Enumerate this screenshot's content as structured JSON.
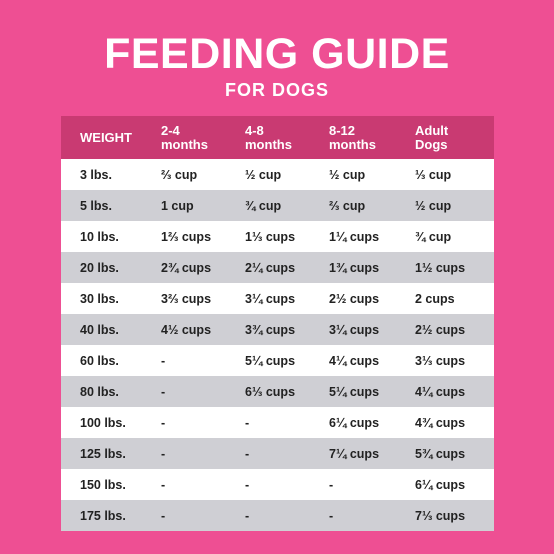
{
  "title": "FEEDING GUIDE",
  "subtitle": "FOR DOGS",
  "colors": {
    "background": "#ee4f93",
    "header": "#c93a72",
    "row_light": "#ffffff",
    "row_gray": "#cfcfd4"
  },
  "table": {
    "headers": [
      "WEIGHT",
      "2-4 months",
      "4-8 months",
      "8-12 months",
      "Adult Dogs"
    ],
    "rows": [
      [
        "3 lbs.",
        "⅔ cup",
        "½ cup",
        "½ cup",
        "⅓ cup"
      ],
      [
        "5 lbs.",
        "1 cup",
        "¾ cup",
        "⅔ cup",
        "½ cup"
      ],
      [
        "10 lbs.",
        "1⅔ cups",
        "1⅓ cups",
        "1¼ cups",
        "¾ cup"
      ],
      [
        "20 lbs.",
        "2¾ cups",
        "2¼ cups",
        "1¾ cups",
        "1½ cups"
      ],
      [
        "30 lbs.",
        "3⅔ cups",
        "3¼ cups",
        "2½ cups",
        "2 cups"
      ],
      [
        "40 lbs.",
        "4½ cups",
        "3¾ cups",
        "3¼ cups",
        "2½ cups"
      ],
      [
        "60 lbs.",
        "-",
        "5¼ cups",
        "4¼ cups",
        "3⅓ cups"
      ],
      [
        "80 lbs.",
        "-",
        "6⅓ cups",
        "5¼ cups",
        "4¼ cups"
      ],
      [
        "100 lbs.",
        "-",
        "-",
        "6¼ cups",
        "4¾ cups"
      ],
      [
        "125 lbs.",
        "-",
        "-",
        "7¼ cups",
        "5¾ cups"
      ],
      [
        "150 lbs.",
        "-",
        "-",
        "-",
        "6¼ cups"
      ],
      [
        "175 lbs.",
        "-",
        "-",
        "-",
        "7⅓ cups"
      ]
    ]
  }
}
